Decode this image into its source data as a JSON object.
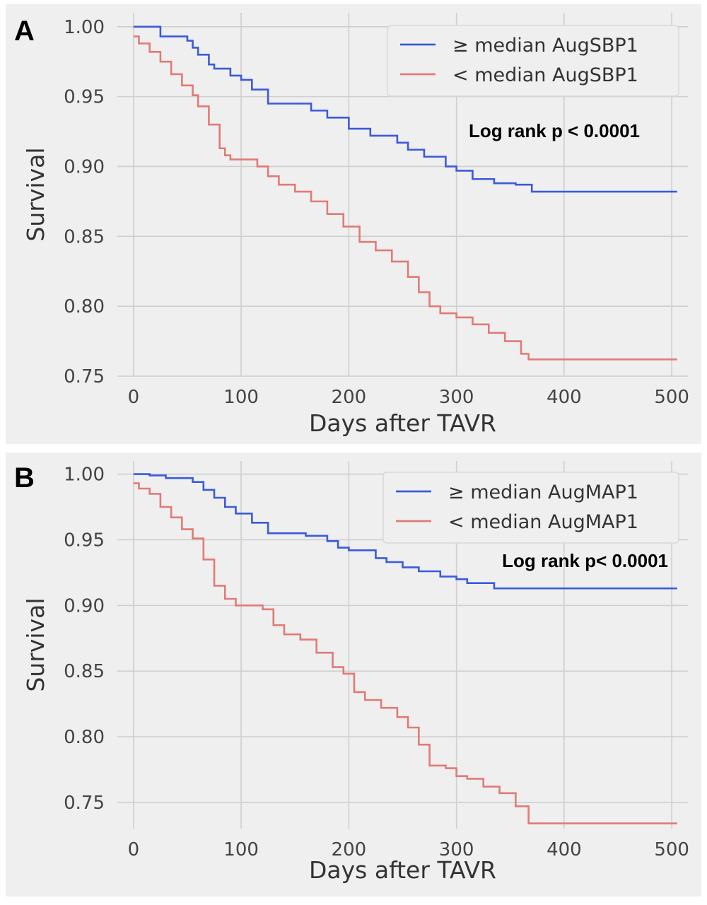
{
  "chart_data": [
    {
      "type": "line",
      "panel_label": "A",
      "xlabel": "Days after TAVR",
      "ylabel": "Survival",
      "xlim": [
        -15,
        515
      ],
      "ylim": [
        0.75,
        1.01
      ],
      "xticks": [
        0,
        100,
        200,
        300,
        400,
        500
      ],
      "yticks": [
        0.75,
        0.8,
        0.85,
        0.9,
        0.95,
        1.0
      ],
      "ytick_labels": [
        "0.75",
        "0.80",
        "0.85",
        "0.90",
        "0.95",
        "1.00"
      ],
      "grid": true,
      "legend_position": "top-right",
      "annotation": "Log rank p < 0.0001",
      "series": [
        {
          "name": "≥ median AugSBP1",
          "color": "#3b5bdb",
          "x": [
            0,
            25,
            50,
            55,
            60,
            70,
            75,
            90,
            100,
            110,
            125,
            165,
            180,
            200,
            220,
            245,
            255,
            270,
            290,
            300,
            315,
            335,
            355,
            370,
            505
          ],
          "y": [
            1.0,
            0.993,
            0.99,
            0.985,
            0.98,
            0.973,
            0.97,
            0.965,
            0.962,
            0.955,
            0.945,
            0.94,
            0.935,
            0.927,
            0.922,
            0.917,
            0.912,
            0.907,
            0.9,
            0.897,
            0.891,
            0.888,
            0.887,
            0.882,
            0.882
          ]
        },
        {
          "name": "< median AugSBP1",
          "color": "#e07b76",
          "x": [
            0,
            5,
            15,
            25,
            35,
            45,
            55,
            60,
            70,
            80,
            85,
            90,
            100,
            115,
            125,
            135,
            150,
            165,
            180,
            195,
            210,
            225,
            240,
            255,
            265,
            275,
            285,
            300,
            315,
            330,
            345,
            360,
            367,
            505
          ],
          "y": [
            0.993,
            0.988,
            0.982,
            0.975,
            0.966,
            0.958,
            0.951,
            0.943,
            0.93,
            0.913,
            0.908,
            0.905,
            0.905,
            0.9,
            0.893,
            0.887,
            0.882,
            0.875,
            0.866,
            0.857,
            0.846,
            0.84,
            0.832,
            0.821,
            0.81,
            0.8,
            0.795,
            0.792,
            0.787,
            0.781,
            0.775,
            0.766,
            0.762,
            0.762
          ]
        }
      ]
    },
    {
      "type": "line",
      "panel_label": "B",
      "xlabel": "Days after TAVR",
      "ylabel": "Survival",
      "xlim": [
        -15,
        515
      ],
      "ylim": [
        0.73,
        1.01
      ],
      "xticks": [
        0,
        100,
        200,
        300,
        400,
        500
      ],
      "yticks": [
        0.75,
        0.8,
        0.85,
        0.9,
        0.95,
        1.0
      ],
      "ytick_labels": [
        "0.75",
        "0.80",
        "0.85",
        "0.90",
        "0.95",
        "1.00"
      ],
      "grid": true,
      "legend_position": "top-right",
      "annotation": "Log rank p< 0.0001",
      "series": [
        {
          "name": "≥ median AugMAP1",
          "color": "#3b5bdb",
          "x": [
            0,
            15,
            30,
            55,
            65,
            75,
            85,
            95,
            110,
            125,
            160,
            180,
            190,
            200,
            225,
            235,
            250,
            265,
            285,
            300,
            310,
            335,
            505
          ],
          "y": [
            1.0,
            0.999,
            0.997,
            0.994,
            0.988,
            0.982,
            0.975,
            0.97,
            0.963,
            0.955,
            0.953,
            0.949,
            0.944,
            0.942,
            0.936,
            0.933,
            0.929,
            0.926,
            0.922,
            0.92,
            0.917,
            0.913,
            0.913
          ]
        },
        {
          "name": "< median AugMAP1",
          "color": "#e07b76",
          "x": [
            0,
            5,
            15,
            25,
            35,
            45,
            55,
            65,
            75,
            85,
            95,
            120,
            130,
            140,
            155,
            170,
            185,
            195,
            205,
            215,
            230,
            245,
            255,
            265,
            275,
            290,
            300,
            310,
            325,
            340,
            355,
            367,
            505
          ],
          "y": [
            0.993,
            0.989,
            0.985,
            0.975,
            0.967,
            0.958,
            0.951,
            0.935,
            0.915,
            0.905,
            0.9,
            0.897,
            0.885,
            0.878,
            0.874,
            0.864,
            0.853,
            0.848,
            0.834,
            0.828,
            0.822,
            0.815,
            0.807,
            0.794,
            0.778,
            0.776,
            0.77,
            0.768,
            0.762,
            0.757,
            0.747,
            0.734,
            0.734
          ]
        }
      ]
    }
  ]
}
